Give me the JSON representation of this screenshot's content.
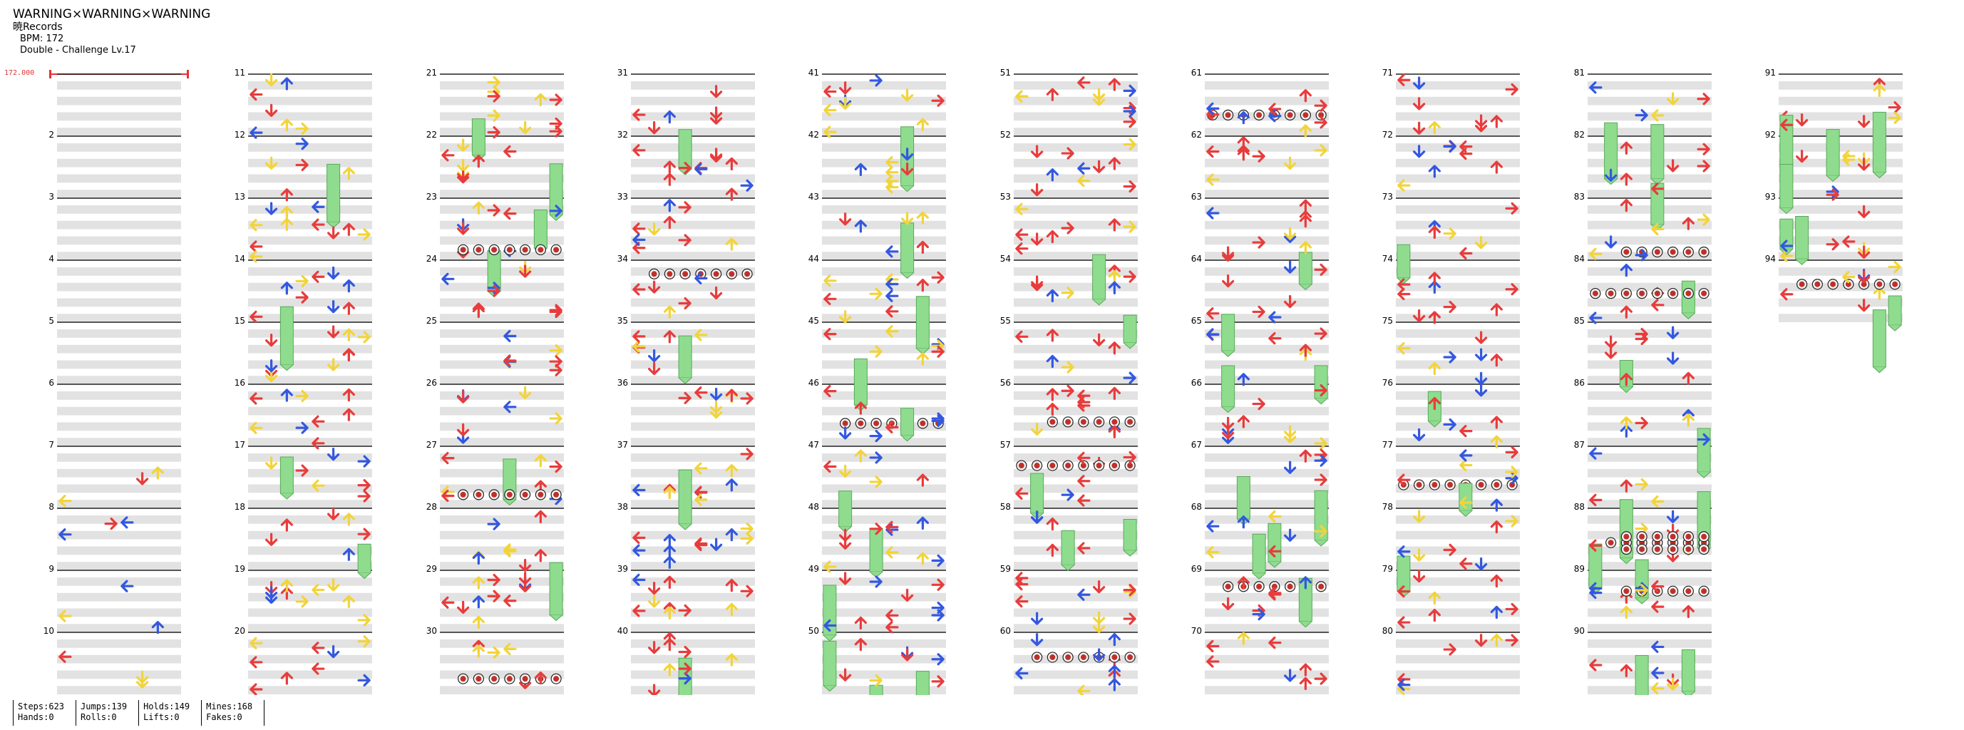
{
  "song": {
    "title": "WARNING×WARNING×WARNING",
    "artist": "暁Records",
    "bpm_label": "BPM: 172",
    "difficulty_label": "Double - Challenge Lv.17"
  },
  "bpm_marker": "172.000",
  "stats": {
    "steps": "Steps:623",
    "hands": "Hands:0",
    "jumps": "Jumps:139",
    "rolls": "Rolls:0",
    "holds": "Holds:149",
    "lifts": "Lifts:0",
    "mines": "Mines:168",
    "fakes": "Fakes:0"
  },
  "measure_labels": [
    "2",
    "3",
    "4",
    "5",
    "6",
    "7",
    "8",
    "9",
    "10",
    "11",
    "12",
    "13",
    "14",
    "15",
    "16",
    "17",
    "18",
    "19",
    "20",
    "21",
    "22",
    "23",
    "24",
    "25",
    "26",
    "27",
    "28",
    "29",
    "30",
    "31",
    "32",
    "33",
    "34",
    "35",
    "36",
    "37",
    "38",
    "39",
    "40",
    "41",
    "42",
    "43",
    "44",
    "45",
    "46",
    "47",
    "48",
    "49",
    "50",
    "51",
    "52",
    "53",
    "54",
    "55",
    "56",
    "57",
    "58",
    "59",
    "60",
    "61",
    "62",
    "63",
    "64",
    "65",
    "66",
    "67",
    "68",
    "69",
    "70",
    "71",
    "72",
    "73",
    "74",
    "75",
    "76",
    "77",
    "78",
    "79",
    "80",
    "81",
    "82",
    "83",
    "84",
    "85",
    "86",
    "87",
    "88",
    "89",
    "90",
    "91",
    "92",
    "93",
    "94"
  ],
  "note_colors": {
    "quarter": "#e83c3c",
    "eighth": "#3358e0",
    "sixteenth": "#f2d43a",
    "hold": "#8fdc8f",
    "mine": "#c0302a"
  }
}
